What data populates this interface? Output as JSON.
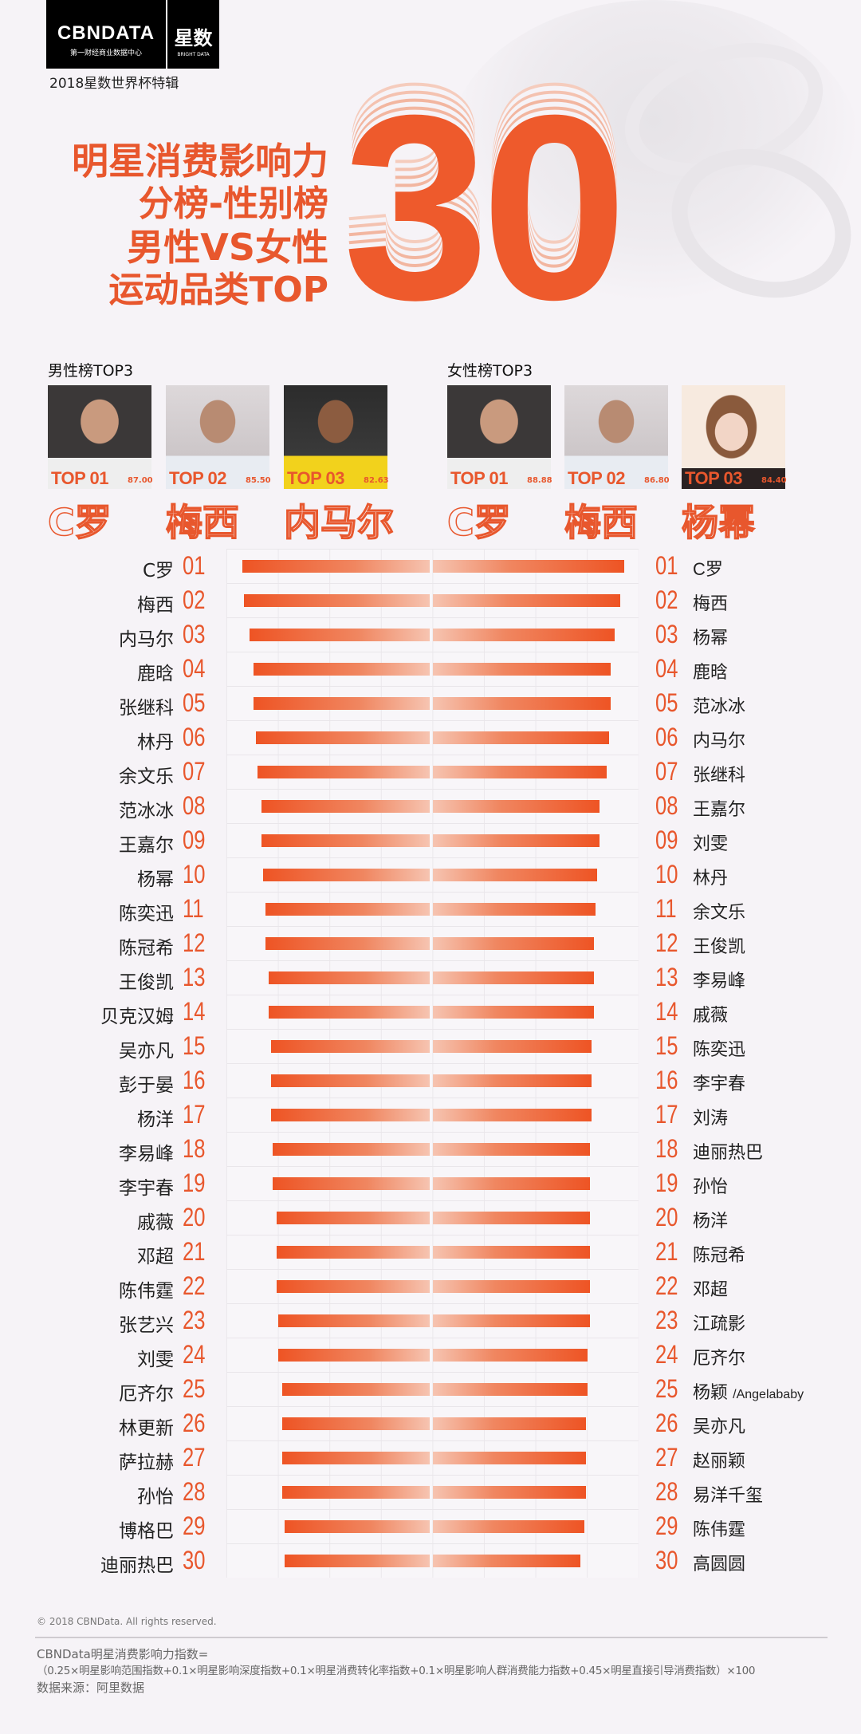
{
  "header": {
    "logo_brand": "CBNDATA",
    "logo_tagline": "第一财经商业数据中心",
    "logo_partner": "星数",
    "logo_partner_en": "BRIGHT DATA",
    "special_edition": "2018星数世界杯特辑"
  },
  "title": {
    "line1": "明星消费影响力",
    "line2": "分榜-性别榜",
    "line3": "男性VS女性",
    "line4": "运动品类TOP",
    "number": "30"
  },
  "colors": {
    "accent": "#e8572d",
    "background": "#f6f3f7"
  },
  "male_top3": {
    "label": "男性榜TOP3",
    "items": [
      {
        "tag": "TOP 01",
        "score": "87.00",
        "name": "C罗",
        "photo": "portrait-ronaldo"
      },
      {
        "tag": "TOP 02",
        "score": "85.50",
        "name": "梅西",
        "photo": "portrait-messi"
      },
      {
        "tag": "TOP 03",
        "score": "82.63",
        "name": "内马尔",
        "photo": "portrait-neymar"
      }
    ]
  },
  "female_top3": {
    "label": "女性榜TOP3",
    "items": [
      {
        "tag": "TOP 01",
        "score": "88.88",
        "name": "C罗",
        "photo": "portrait-ronaldo"
      },
      {
        "tag": "TOP 02",
        "score": "86.80",
        "name": "梅西",
        "photo": "portrait-messi"
      },
      {
        "tag": "TOP 03",
        "score": "84.40",
        "name": "杨幂",
        "photo": "portrait-yang-mi"
      }
    ]
  },
  "chart_data": {
    "type": "bar",
    "orientation": "butterfly-horizontal",
    "value_unit": "bar length, percent of longest bar",
    "ranks": [
      "01",
      "02",
      "03",
      "04",
      "05",
      "06",
      "07",
      "08",
      "09",
      "10",
      "11",
      "12",
      "13",
      "14",
      "15",
      "16",
      "17",
      "18",
      "19",
      "20",
      "21",
      "22",
      "23",
      "24",
      "25",
      "26",
      "27",
      "28",
      "29",
      "30"
    ],
    "male": {
      "names": [
        "C罗",
        "梅西",
        "内马尔",
        "鹿晗",
        "张继科",
        "林丹",
        "余文乐",
        "范冰冰",
        "王嘉尔",
        "杨幂",
        "陈奕迅",
        "陈冠希",
        "王俊凯",
        "贝克汉姆",
        "吴亦凡",
        "彭于晏",
        "杨洋",
        "李易峰",
        "李宇春",
        "戚薇",
        "邓超",
        "陈伟霆",
        "张艺兴",
        "刘雯",
        "厄齐尔",
        "林更新",
        "萨拉赫",
        "孙怡",
        "博格巴",
        "迪丽热巴"
      ],
      "values": [
        98,
        97,
        94,
        92,
        92,
        91,
        90,
        88,
        88,
        87,
        86,
        86,
        84,
        84,
        83,
        83,
        83,
        82,
        82,
        80,
        80,
        80,
        79,
        79,
        77,
        77,
        77,
        77,
        76,
        76
      ]
    },
    "female": {
      "names": [
        "C罗",
        "梅西",
        "杨幂",
        "鹿晗",
        "范冰冰",
        "内马尔",
        "张继科",
        "王嘉尔",
        "刘雯",
        "林丹",
        "余文乐",
        "王俊凯",
        "李易峰",
        "戚薇",
        "陈奕迅",
        "李宇春",
        "刘涛",
        "迪丽热巴",
        "孙怡",
        "杨洋",
        "陈冠希",
        "邓超",
        "江疏影",
        "厄齐尔",
        "杨颖 /Angelababy",
        "吴亦凡",
        "赵丽颖",
        "易洋千玺",
        "陈伟霆",
        "高圆圆"
      ],
      "values": [
        100,
        98,
        95,
        93,
        93,
        92,
        91,
        87,
        87,
        86,
        85,
        84,
        84,
        84,
        83,
        83,
        83,
        82,
        82,
        82,
        82,
        82,
        82,
        81,
        81,
        80,
        80,
        80,
        79,
        77
      ]
    }
  },
  "footer": {
    "copyright": "© 2018 CBNData. All rights reserved.",
    "formula_title": "CBNData明星消费影响力指数=",
    "formula": "（0.25×明星影响范围指数+0.1×明星影响深度指数+0.1×明星消费转化率指数+0.1×明星影响人群消费能力指数+0.45×明星直接引导消费指数）×100",
    "source": "数据来源：阿里数据"
  }
}
